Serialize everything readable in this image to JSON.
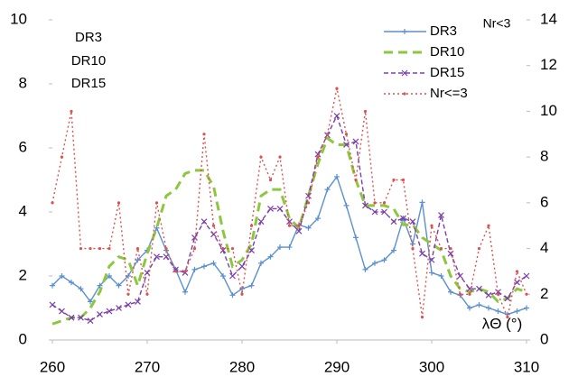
{
  "chart_data": {
    "type": "line",
    "annotations": [
      "DR3",
      "DR10",
      "DR15"
    ],
    "y2_label": "Nr<3",
    "x_label": "λΘ (°)",
    "x": [
      260,
      261,
      262,
      263,
      264,
      265,
      266,
      267,
      268,
      269,
      270,
      271,
      272,
      273,
      274,
      275,
      276,
      277,
      278,
      279,
      280,
      281,
      282,
      283,
      284,
      285,
      286,
      287,
      288,
      289,
      290,
      291,
      292,
      293,
      294,
      295,
      296,
      297,
      298,
      299,
      300,
      301,
      302,
      303,
      304,
      305,
      306,
      307,
      308,
      309,
      310
    ],
    "series": [
      {
        "name": "DR3",
        "color": "#5b8fd0",
        "dash": "none",
        "marker": "plus",
        "values": [
          1.7,
          2.0,
          1.8,
          1.6,
          1.2,
          1.7,
          2.0,
          1.7,
          2.0,
          2.5,
          2.8,
          3.5,
          2.8,
          2.2,
          1.5,
          2.2,
          2.3,
          2.4,
          2.0,
          1.4,
          1.6,
          1.7,
          2.4,
          2.6,
          2.9,
          2.9,
          3.6,
          3.5,
          3.8,
          4.7,
          5.1,
          4.2,
          3.2,
          2.2,
          2.4,
          2.5,
          2.8,
          3.8,
          3.0,
          4.3,
          2.1,
          2.0,
          1.5,
          1.4,
          1.0,
          1.1,
          1.0,
          0.9,
          0.8,
          0.9,
          1.0
        ]
      },
      {
        "name": "DR10",
        "color": "#8dc63f",
        "dash": "10 6",
        "marker": "none",
        "values": [
          0.5,
          0.6,
          0.7,
          0.7,
          1.0,
          1.5,
          2.3,
          2.6,
          2.5,
          1.7,
          2.7,
          3.5,
          4.5,
          4.7,
          5.2,
          5.3,
          5.3,
          4.8,
          3.4,
          2.3,
          2.5,
          3.0,
          4.5,
          4.7,
          4.7,
          3.8,
          3.5,
          4.5,
          5.5,
          6.3,
          6.1,
          6.1,
          5.0,
          4.2,
          4.2,
          4.2,
          4.1,
          3.6,
          3.6,
          3.2,
          3.0,
          2.8,
          2.0,
          1.6,
          1.5,
          1.6,
          1.5,
          1.2,
          1.3,
          1.6,
          1.5
        ]
      },
      {
        "name": "DR15",
        "color": "#7a3fa8",
        "dash": "5 3",
        "marker": "cross",
        "values": [
          1.1,
          0.9,
          0.7,
          0.7,
          0.6,
          0.8,
          0.9,
          1.0,
          1.1,
          1.2,
          2.1,
          2.6,
          2.6,
          2.2,
          2.1,
          3.2,
          3.7,
          3.3,
          2.8,
          2.0,
          2.3,
          2.8,
          3.7,
          4.1,
          4.1,
          3.7,
          3.4,
          4.5,
          5.8,
          6.4,
          7.0,
          6.1,
          6.2,
          4.2,
          4.0,
          4.0,
          3.7,
          3.8,
          3.7,
          2.7,
          2.5,
          3.9,
          2.7,
          2.0,
          1.6,
          1.6,
          1.4,
          1.5,
          1.3,
          1.8,
          2.0
        ]
      },
      {
        "name": "Nr<=3",
        "color": "#d9534f",
        "dash": "2 3",
        "marker": "dot",
        "axis": "y2",
        "values": [
          6,
          8,
          10,
          4,
          4,
          4,
          4,
          6,
          2,
          4,
          2,
          6,
          4,
          3,
          3,
          4,
          9,
          5,
          4,
          4,
          2,
          5,
          8,
          7,
          8,
          5,
          5,
          6,
          8,
          9,
          11,
          9,
          7,
          10,
          6,
          6,
          7,
          7,
          4,
          1,
          5,
          4,
          4,
          2,
          2,
          4,
          5,
          2,
          1,
          3,
          2
        ]
      }
    ],
    "xlim": [
      260,
      310
    ],
    "xticks": [
      260,
      270,
      280,
      290,
      300,
      310
    ],
    "ylim": [
      0,
      10
    ],
    "yticks": [
      0,
      2,
      4,
      6,
      8,
      10
    ],
    "y2lim": [
      0,
      14
    ],
    "y2ticks": [
      0,
      2,
      4,
      6,
      8,
      10,
      12,
      14
    ],
    "grid": false,
    "legend": "upper right"
  }
}
